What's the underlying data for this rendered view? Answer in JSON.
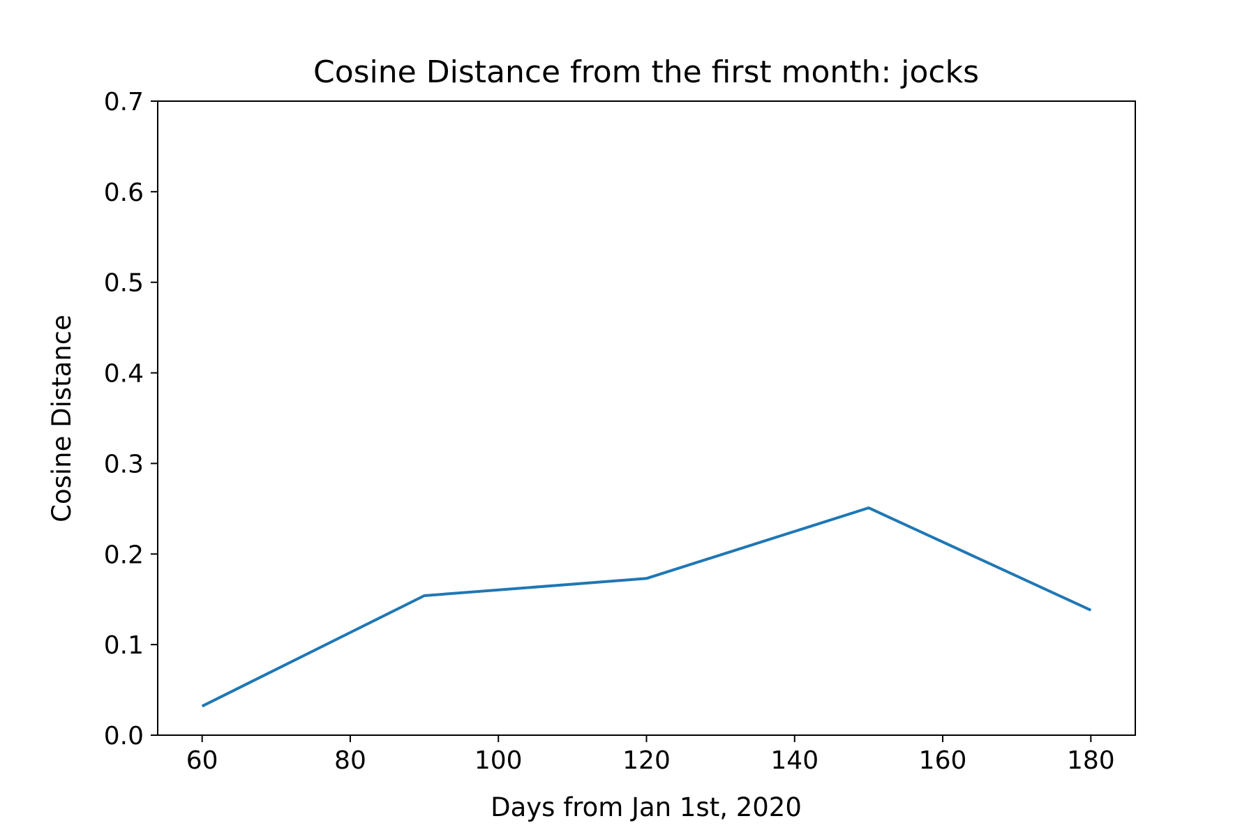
{
  "chart_data": {
    "type": "line",
    "title": "Cosine Distance from the first month: jocks",
    "xlabel": "Days from Jan 1st, 2020",
    "ylabel": "Cosine Distance",
    "xlim": [
      54,
      186
    ],
    "ylim": [
      0.0,
      0.7
    ],
    "xticks": [
      60,
      80,
      100,
      120,
      140,
      160,
      180
    ],
    "xtick_labels": [
      "60",
      "80",
      "100",
      "120",
      "140",
      "160",
      "180"
    ],
    "yticks": [
      0.0,
      0.1,
      0.2,
      0.3,
      0.4,
      0.5,
      0.6,
      0.7
    ],
    "ytick_labels": [
      "0.0",
      "0.1",
      "0.2",
      "0.3",
      "0.4",
      "0.5",
      "0.6",
      "0.7"
    ],
    "grid": false,
    "series": [
      {
        "color": "#1f77b4",
        "x": [
          60,
          90,
          120,
          150,
          180
        ],
        "y": [
          0.032,
          0.154,
          0.173,
          0.251,
          0.138
        ]
      }
    ]
  }
}
